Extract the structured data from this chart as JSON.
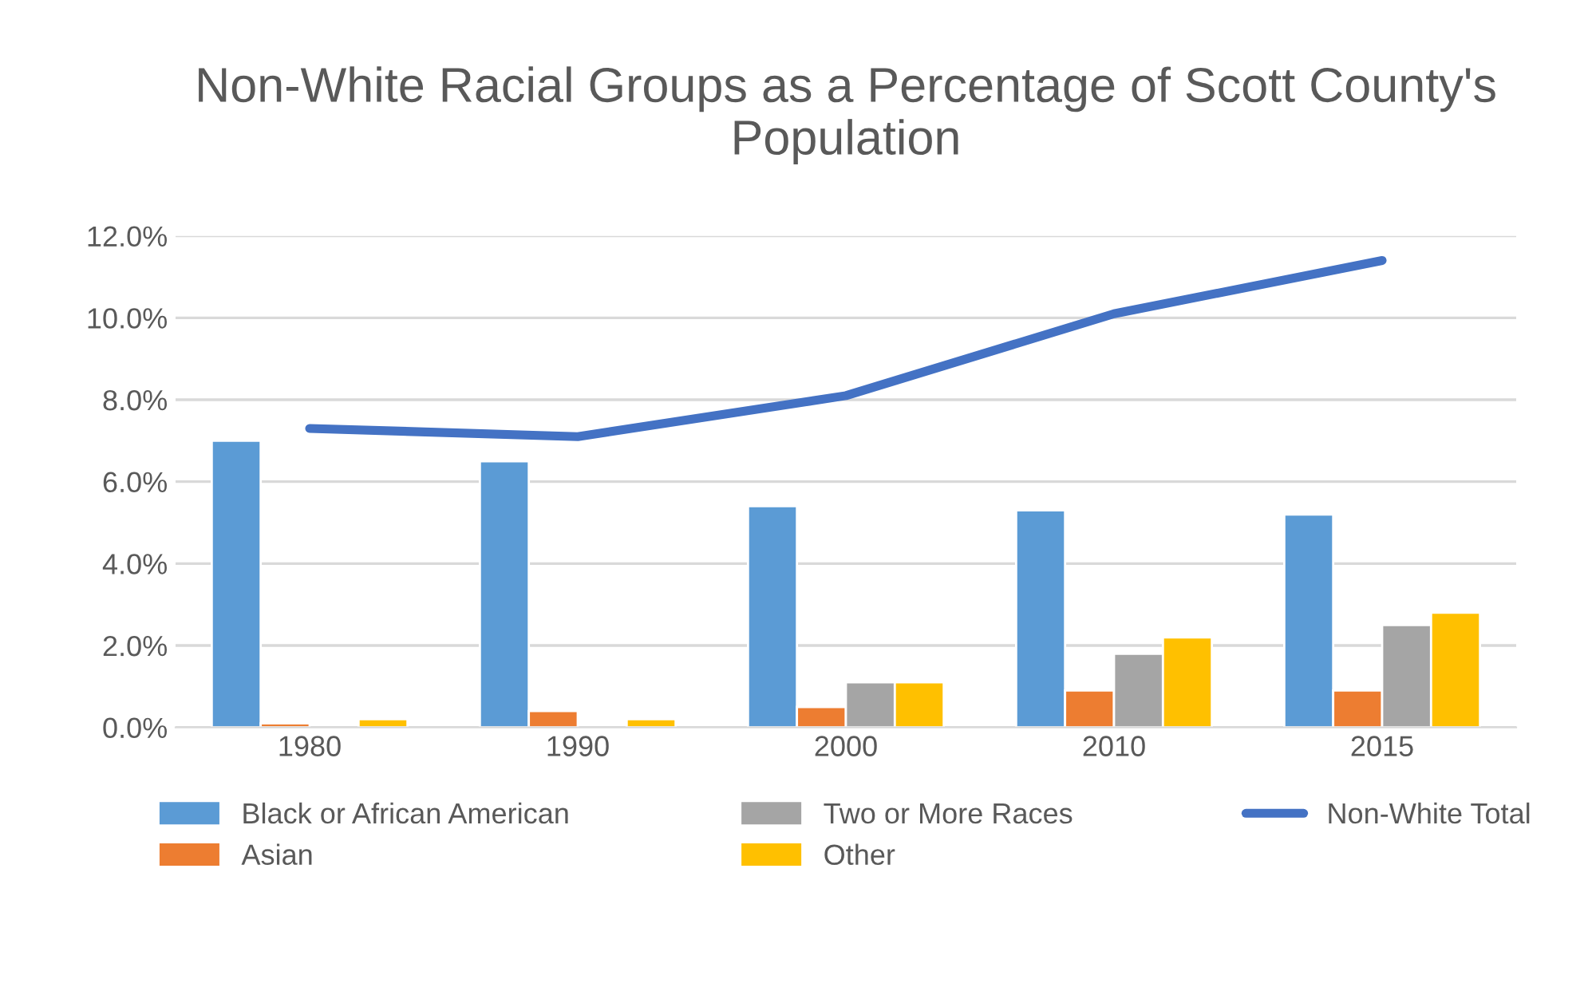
{
  "chart_data": {
    "type": "bar",
    "title": "Non-White Racial Groups as a Percentage of Scott County's Population",
    "categories": [
      "1980",
      "1990",
      "2000",
      "2010",
      "2015"
    ],
    "series": [
      {
        "name": "Black or African American",
        "color": "#5b9bd5",
        "values": [
          7.0,
          6.5,
          5.4,
          5.3,
          5.2
        ]
      },
      {
        "name": "Asian",
        "color": "#ed7d31",
        "values": [
          0.1,
          0.4,
          0.5,
          0.9,
          0.9
        ]
      },
      {
        "name": "Two or More Races",
        "color": "#a5a5a5",
        "values": [
          null,
          null,
          1.1,
          1.8,
          2.5
        ]
      },
      {
        "name": "Other",
        "color": "#ffc000",
        "values": [
          0.2,
          0.2,
          1.1,
          2.2,
          2.8
        ]
      },
      {
        "name": "Non-White Total",
        "color": "#4472c4",
        "type": "line",
        "values": [
          7.3,
          7.1,
          8.1,
          10.1,
          11.4
        ]
      }
    ],
    "ylim": [
      0,
      12
    ],
    "yticks": [
      {
        "value": 0,
        "label": "0.0%"
      },
      {
        "value": 2,
        "label": "2.0%"
      },
      {
        "value": 4,
        "label": "4.0%"
      },
      {
        "value": 6,
        "label": "6.0%"
      },
      {
        "value": 8,
        "label": "8.0%"
      },
      {
        "value": 10,
        "label": "10.0%"
      },
      {
        "value": 12,
        "label": "12.0%"
      }
    ],
    "grid": "y",
    "legend": "bottom"
  }
}
